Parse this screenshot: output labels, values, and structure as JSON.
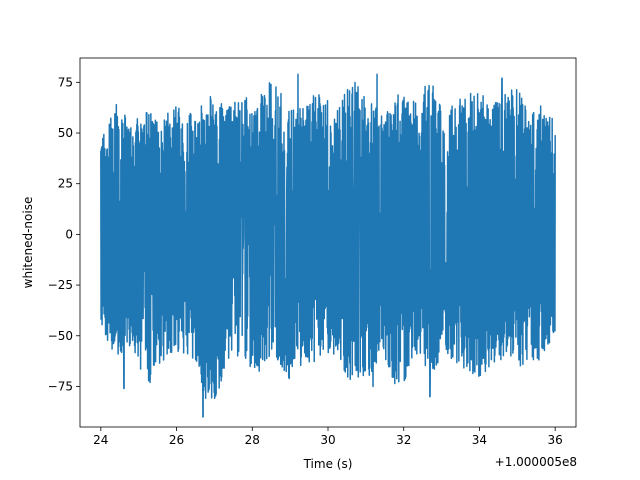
{
  "chart_data": {
    "type": "line",
    "xlabel": "Time (s)",
    "ylabel": "whitened-noise",
    "x_offset_label": "+1.000005e8",
    "xlim": [
      23.45,
      36.55
    ],
    "ylim": [
      -95,
      87
    ],
    "x_ticks": [
      24,
      26,
      28,
      30,
      32,
      34,
      36
    ],
    "x_tick_labels": [
      "24",
      "26",
      "28",
      "30",
      "32",
      "34",
      "36"
    ],
    "y_ticks": [
      -75,
      -50,
      -25,
      0,
      25,
      50,
      75
    ],
    "y_tick_labels": [
      "−75",
      "−50",
      "−25",
      "0",
      "25",
      "50",
      "75"
    ],
    "grid": false,
    "legend": "none",
    "series": [
      {
        "color": "#1f77b4",
        "x_range": [
          24,
          36
        ],
        "envelope_upper": [
          47,
          66,
          55,
          62,
          58,
          65,
          60,
          70,
          63,
          68,
          66,
          79,
          62,
          64,
          72,
          60,
          79,
          66,
          62,
          70,
          66,
          78,
          61,
          68,
          72,
          64,
          77,
          70,
          65,
          56
        ],
        "envelope_lower": [
          -48,
          -60,
          -56,
          -76,
          -62,
          -58,
          -64,
          -90,
          -66,
          -60,
          -70,
          -58,
          -72,
          -64,
          -62,
          -60,
          -75,
          -72,
          -58,
          -80,
          -62,
          -70,
          -60,
          -66,
          -72,
          -64,
          -60,
          -68,
          -62,
          -50
        ],
        "peaks": [
          {
            "x": 29.2,
            "y": 79
          },
          {
            "x": 31.3,
            "y": 79
          },
          {
            "x": 34.6,
            "y": 77
          },
          {
            "x": 26.7,
            "y": -90
          },
          {
            "x": 32.7,
            "y": -80
          },
          {
            "x": 31.2,
            "y": -75
          },
          {
            "x": 24.6,
            "y": -76
          }
        ]
      }
    ]
  }
}
